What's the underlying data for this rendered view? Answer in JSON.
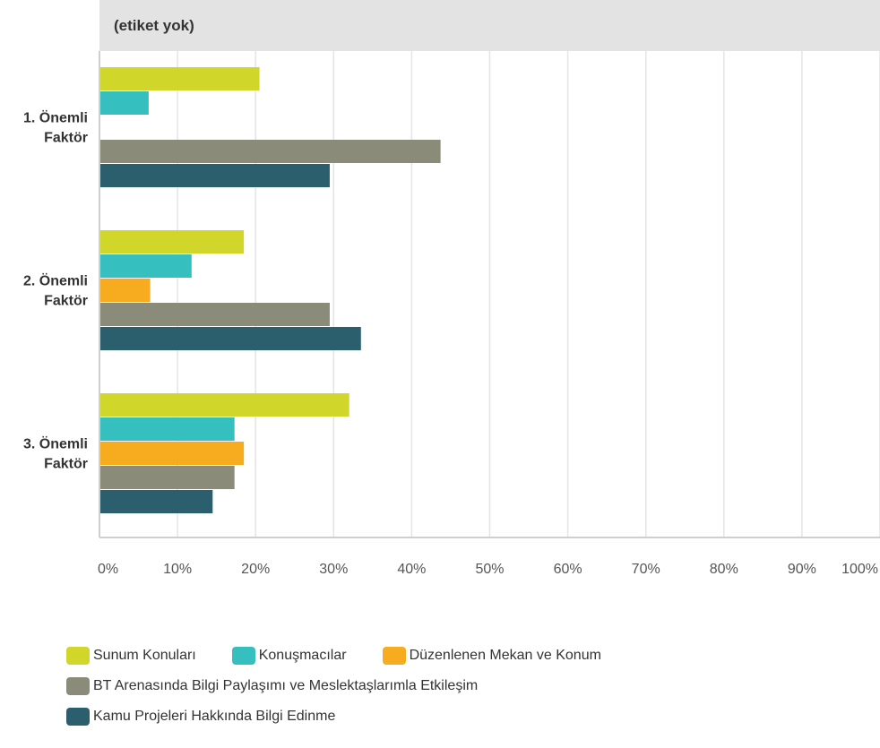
{
  "chart_data": {
    "type": "bar",
    "orientation": "horizontal",
    "title": "(etiket yok)",
    "categories": [
      [
        "1. Önemli",
        "Faktör"
      ],
      [
        "2. Önemli",
        "Faktör"
      ],
      [
        "3. Önemli",
        "Faktör"
      ]
    ],
    "x_ticks": [
      "0%",
      "10%",
      "20%",
      "30%",
      "40%",
      "50%",
      "60%",
      "70%",
      "80%",
      "90%",
      "100%"
    ],
    "xlim": [
      0,
      100
    ],
    "grid": true,
    "legend_position": "bottom",
    "series": [
      {
        "name": "Sunum Konuları",
        "color": "#d0d62a",
        "values": [
          20.5,
          18.5,
          32
        ]
      },
      {
        "name": "Konuşmacılar",
        "color": "#35bfbf",
        "values": [
          6.3,
          11.8,
          17.3
        ]
      },
      {
        "name": "Düzenlenen Mekan ve Konum",
        "color": "#f7ab1e",
        "values": [
          0,
          6.5,
          18.5
        ]
      },
      {
        "name": "BT Arenasında Bilgi Paylaşımı ve Meslektaşlarımla Etkileşim",
        "color": "#8b8b7a",
        "values": [
          43.7,
          29.5,
          17.3
        ]
      },
      {
        "name": "Kamu Projeleri Hakkında Bilgi Edinme",
        "color": "#2c5f6e",
        "values": [
          29.5,
          33.5,
          14.5
        ]
      }
    ]
  }
}
